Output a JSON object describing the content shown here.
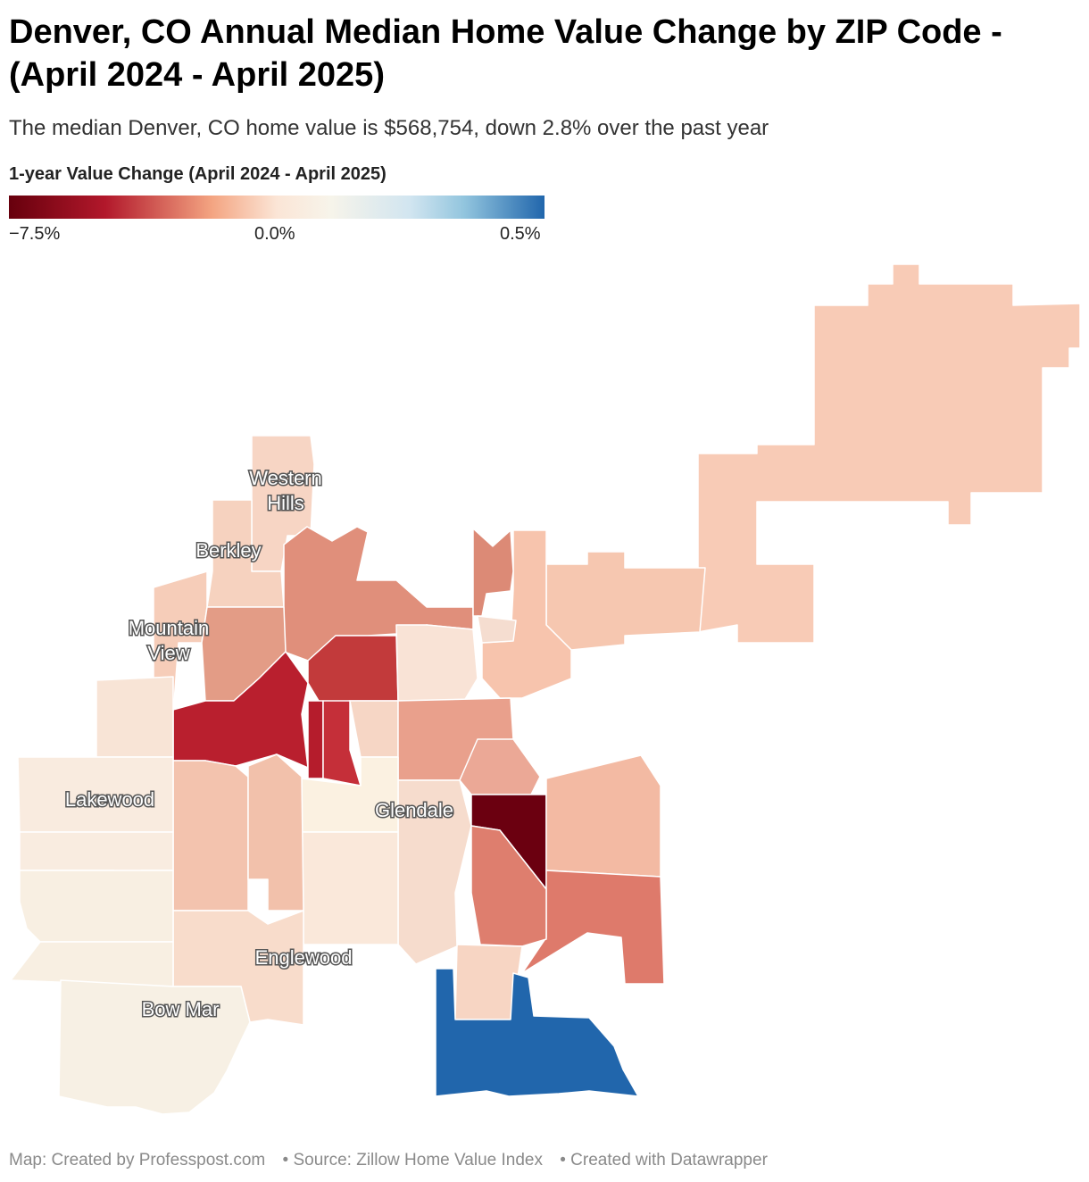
{
  "header": {
    "title": "Denver, CO Annual Median Home Value Change by ZIP Code - (April 2024 - April 2025)",
    "subtitle": "The median Denver, CO home value is $568,754, down 2.8% over the past year"
  },
  "legend": {
    "title": "1-year Value Change (April 2024 - April 2025)",
    "min_label": "−7.5%",
    "mid_label": "0.0%",
    "max_label": "0.5%",
    "colors": {
      "low": "#67000d",
      "mid_low": "#b2182b",
      "neutral": "#f7f4ea",
      "high": "#2166ac"
    }
  },
  "map": {
    "places": [
      {
        "name": "Western Hills",
        "line1": "Western",
        "line2": "Hills"
      },
      {
        "name": "Berkley",
        "line1": "Berkley"
      },
      {
        "name": "Mountain View",
        "line1": "Mountain",
        "line2": "View"
      },
      {
        "name": "Lakewood",
        "line1": "Lakewood"
      },
      {
        "name": "Glendale",
        "line1": "Glendale"
      },
      {
        "name": "Englewood",
        "line1": "Englewood"
      },
      {
        "name": "Bow Mar",
        "line1": "Bow Mar"
      }
    ]
  },
  "footer": {
    "credit": "Map: Created by Professpost.com",
    "source": "• Source: Zillow Home Value Index",
    "tool": "• Created with Datawrapper"
  }
}
